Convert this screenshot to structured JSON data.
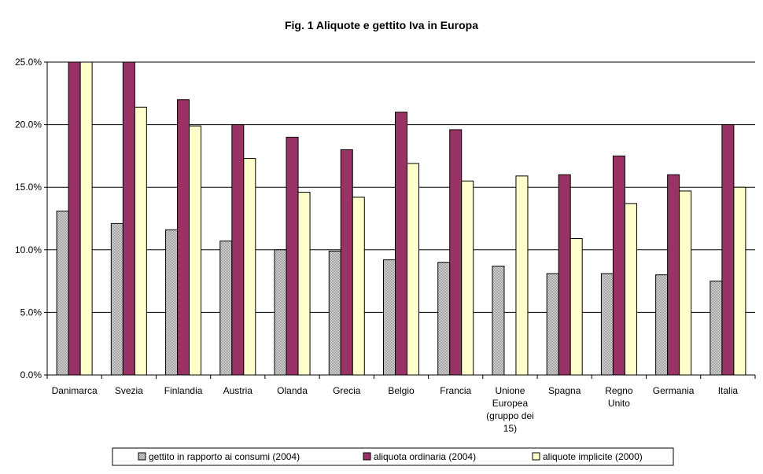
{
  "chart_data": {
    "type": "bar",
    "title": "Fig. 1 Aliquote e gettito Iva in Europa",
    "xlabel": "",
    "ylabel": "",
    "ylim": [
      0,
      25
    ],
    "yticks": [
      "0.0%",
      "5.0%",
      "10.0%",
      "15.0%",
      "20.0%",
      "25.0%"
    ],
    "grid": true,
    "legend_position": "bottom",
    "categories": [
      [
        "Danimarca"
      ],
      [
        "Svezia"
      ],
      [
        "Finlandia"
      ],
      [
        "Austria"
      ],
      [
        "Olanda"
      ],
      [
        "Grecia"
      ],
      [
        "Belgio"
      ],
      [
        "Francia"
      ],
      [
        "Unione",
        "Europea",
        "(gruppo dei",
        "15)"
      ],
      [
        "Spagna"
      ],
      [
        "Regno",
        "Unito"
      ],
      [
        "Germania"
      ],
      [
        "Italia"
      ]
    ],
    "series": [
      {
        "name": "gettito in rapporto ai consumi (2004)",
        "color": "#c0c0c0",
        "values": [
          13.1,
          12.1,
          11.6,
          10.7,
          10.0,
          9.9,
          9.2,
          9.0,
          8.7,
          8.1,
          8.1,
          8.0,
          7.5
        ]
      },
      {
        "name": "aliquota ordinaria (2004)",
        "color": "#993366",
        "values": [
          25.0,
          25.0,
          22.0,
          20.0,
          19.0,
          18.0,
          21.0,
          19.6,
          null,
          16.0,
          17.5,
          16.0,
          20.0
        ]
      },
      {
        "name": "aliquote implicite (2000)",
        "color": "#ffffcc",
        "values": [
          25.0,
          21.4,
          19.9,
          17.3,
          14.6,
          14.2,
          16.9,
          15.5,
          15.9,
          10.9,
          13.7,
          14.7,
          15.0
        ]
      }
    ]
  }
}
